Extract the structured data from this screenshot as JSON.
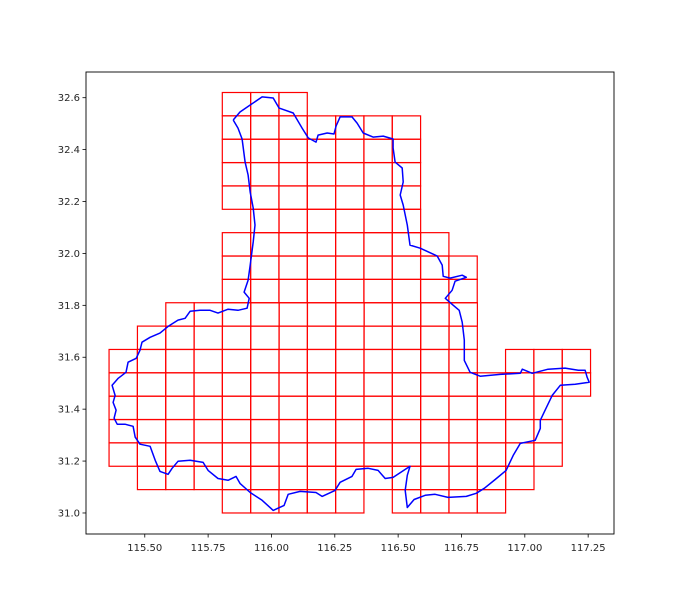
{
  "chart_data": {
    "type": "line",
    "title": "",
    "xlabel": "",
    "ylabel": "",
    "xlim": [
      115.268,
      117.352
    ],
    "ylim": [
      30.919,
      32.699
    ],
    "grid": false,
    "x_ticks": [
      "115.50",
      "115.75",
      "116.00",
      "116.25",
      "116.50",
      "116.75",
      "117.00",
      "117.25"
    ],
    "y_ticks": [
      "31.0",
      "31.2",
      "31.4",
      "31.6",
      "31.8",
      "32.0",
      "32.2",
      "32.4",
      "32.6"
    ],
    "colors": {
      "cells": "#ff0000",
      "boundary": "#0000ff",
      "axes": "#000000"
    },
    "cell_size": [
      0.1118,
      0.09
    ],
    "cell_rows": [
      {
        "lat": 31.0,
        "spans": [
          [
            115.806,
            116.365
          ],
          [
            116.477,
            116.924
          ]
        ]
      },
      {
        "lat": 31.09,
        "spans": [
          [
            115.471,
            117.036
          ]
        ]
      },
      {
        "lat": 31.18,
        "spans": [
          [
            115.359,
            117.148
          ]
        ]
      },
      {
        "lat": 31.27,
        "spans": [
          [
            115.359,
            117.148
          ]
        ]
      },
      {
        "lat": 31.36,
        "spans": [
          [
            115.359,
            117.148
          ]
        ]
      },
      {
        "lat": 31.45,
        "spans": [
          [
            115.359,
            117.26
          ]
        ]
      },
      {
        "lat": 31.54,
        "spans": [
          [
            115.359,
            116.812
          ],
          [
            116.924,
            117.26
          ]
        ]
      },
      {
        "lat": 31.63,
        "spans": [
          [
            115.471,
            116.812
          ]
        ]
      },
      {
        "lat": 31.72,
        "spans": [
          [
            115.583,
            116.812
          ]
        ]
      },
      {
        "lat": 31.81,
        "spans": [
          [
            115.806,
            116.812
          ]
        ]
      },
      {
        "lat": 31.9,
        "spans": [
          [
            115.806,
            116.812
          ]
        ]
      },
      {
        "lat": 31.99,
        "spans": [
          [
            115.806,
            116.701
          ]
        ]
      },
      {
        "lat": 32.08,
        "spans": [
          [
            115.918,
            116.589
          ]
        ]
      },
      {
        "lat": 32.17,
        "spans": [
          [
            115.806,
            116.589
          ]
        ]
      },
      {
        "lat": 32.26,
        "spans": [
          [
            115.806,
            116.589
          ]
        ]
      },
      {
        "lat": 32.35,
        "spans": [
          [
            115.806,
            116.589
          ]
        ]
      },
      {
        "lat": 32.44,
        "spans": [
          [
            115.806,
            116.589
          ]
        ]
      },
      {
        "lat": 32.53,
        "spans": [
          [
            115.806,
            116.142
          ]
        ]
      }
    ],
    "boundary": [
      [
        115.849,
        32.514
      ],
      [
        115.876,
        32.545
      ],
      [
        115.916,
        32.572
      ],
      [
        115.963,
        32.603
      ],
      [
        116.007,
        32.599
      ],
      [
        116.03,
        32.56
      ],
      [
        116.086,
        32.541
      ],
      [
        116.121,
        32.483
      ],
      [
        116.145,
        32.445
      ],
      [
        116.176,
        32.429
      ],
      [
        116.184,
        32.456
      ],
      [
        116.22,
        32.464
      ],
      [
        116.247,
        32.46
      ],
      [
        116.255,
        32.491
      ],
      [
        116.271,
        32.526
      ],
      [
        116.318,
        32.526
      ],
      [
        116.338,
        32.502
      ],
      [
        116.362,
        32.464
      ],
      [
        116.401,
        32.448
      ],
      [
        116.441,
        32.452
      ],
      [
        116.48,
        32.441
      ],
      [
        116.48,
        32.406
      ],
      [
        116.488,
        32.352
      ],
      [
        116.516,
        32.329
      ],
      [
        116.52,
        32.275
      ],
      [
        116.508,
        32.225
      ],
      [
        116.52,
        32.186
      ],
      [
        116.536,
        32.109
      ],
      [
        116.547,
        32.032
      ],
      [
        116.587,
        32.02
      ],
      [
        116.654,
        31.99
      ],
      [
        116.674,
        31.955
      ],
      [
        116.678,
        31.912
      ],
      [
        116.705,
        31.905
      ],
      [
        116.753,
        31.916
      ],
      [
        116.769,
        31.908
      ],
      [
        116.725,
        31.893
      ],
      [
        116.713,
        31.858
      ],
      [
        116.686,
        31.827
      ],
      [
        116.713,
        31.804
      ],
      [
        116.741,
        31.781
      ],
      [
        116.753,
        31.735
      ],
      [
        116.761,
        31.666
      ],
      [
        116.761,
        31.588
      ],
      [
        116.784,
        31.542
      ],
      [
        116.824,
        31.527
      ],
      [
        116.903,
        31.534
      ],
      [
        116.982,
        31.538
      ],
      [
        116.99,
        31.554
      ],
      [
        117.029,
        31.538
      ],
      [
        117.092,
        31.554
      ],
      [
        117.159,
        31.558
      ],
      [
        117.211,
        31.55
      ],
      [
        117.238,
        31.55
      ],
      [
        117.246,
        31.523
      ],
      [
        117.254,
        31.504
      ],
      [
        117.199,
        31.496
      ],
      [
        117.14,
        31.492
      ],
      [
        117.108,
        31.453
      ],
      [
        117.08,
        31.396
      ],
      [
        117.061,
        31.357
      ],
      [
        117.061,
        31.326
      ],
      [
        117.041,
        31.28
      ],
      [
        116.982,
        31.268
      ],
      [
        116.954,
        31.222
      ],
      [
        116.926,
        31.164
      ],
      [
        116.883,
        31.129
      ],
      [
        116.84,
        31.095
      ],
      [
        116.808,
        31.076
      ],
      [
        116.769,
        31.064
      ],
      [
        116.697,
        31.06
      ],
      [
        116.646,
        31.072
      ],
      [
        116.607,
        31.068
      ],
      [
        116.563,
        31.052
      ],
      [
        116.536,
        31.021
      ],
      [
        116.528,
        31.087
      ],
      [
        116.536,
        31.145
      ],
      [
        116.547,
        31.18
      ],
      [
        116.516,
        31.16
      ],
      [
        116.48,
        31.137
      ],
      [
        116.449,
        31.133
      ],
      [
        116.421,
        31.164
      ],
      [
        116.382,
        31.172
      ],
      [
        116.334,
        31.168
      ],
      [
        116.318,
        31.141
      ],
      [
        116.271,
        31.118
      ],
      [
        116.251,
        31.087
      ],
      [
        116.2,
        31.064
      ],
      [
        116.176,
        31.079
      ],
      [
        116.113,
        31.083
      ],
      [
        116.066,
        31.072
      ],
      [
        116.05,
        31.029
      ],
      [
        116.007,
        31.01
      ],
      [
        115.963,
        31.049
      ],
      [
        115.916,
        31.079
      ],
      [
        115.876,
        31.114
      ],
      [
        115.86,
        31.141
      ],
      [
        115.829,
        31.126
      ],
      [
        115.789,
        31.133
      ],
      [
        115.75,
        31.164
      ],
      [
        115.73,
        31.195
      ],
      [
        115.679,
        31.203
      ],
      [
        115.631,
        31.199
      ],
      [
        115.608,
        31.172
      ],
      [
        115.592,
        31.149
      ],
      [
        115.56,
        31.16
      ],
      [
        115.541,
        31.203
      ],
      [
        115.521,
        31.257
      ],
      [
        115.481,
        31.265
      ],
      [
        115.462,
        31.292
      ],
      [
        115.454,
        31.334
      ],
      [
        115.422,
        31.342
      ],
      [
        115.391,
        31.342
      ],
      [
        115.379,
        31.365
      ],
      [
        115.387,
        31.396
      ],
      [
        115.375,
        31.426
      ],
      [
        115.383,
        31.453
      ],
      [
        115.371,
        31.492
      ],
      [
        115.395,
        31.519
      ],
      [
        115.426,
        31.542
      ],
      [
        115.434,
        31.581
      ],
      [
        115.466,
        31.596
      ],
      [
        115.481,
        31.627
      ],
      [
        115.489,
        31.658
      ],
      [
        115.521,
        31.677
      ],
      [
        115.56,
        31.693
      ],
      [
        115.592,
        31.719
      ],
      [
        115.631,
        31.743
      ],
      [
        115.659,
        31.75
      ],
      [
        115.679,
        31.777
      ],
      [
        115.718,
        31.781
      ],
      [
        115.758,
        31.781
      ],
      [
        115.789,
        31.77
      ],
      [
        115.829,
        31.785
      ],
      [
        115.868,
        31.781
      ],
      [
        115.904,
        31.789
      ],
      [
        115.912,
        31.827
      ],
      [
        115.892,
        31.851
      ],
      [
        115.908,
        31.897
      ],
      [
        115.916,
        31.955
      ],
      [
        115.928,
        32.044
      ],
      [
        115.935,
        32.109
      ],
      [
        115.928,
        32.175
      ],
      [
        115.916,
        32.236
      ],
      [
        115.908,
        32.302
      ],
      [
        115.896,
        32.352
      ],
      [
        115.884,
        32.441
      ],
      [
        115.868,
        32.483
      ],
      [
        115.849,
        32.514
      ]
    ]
  }
}
